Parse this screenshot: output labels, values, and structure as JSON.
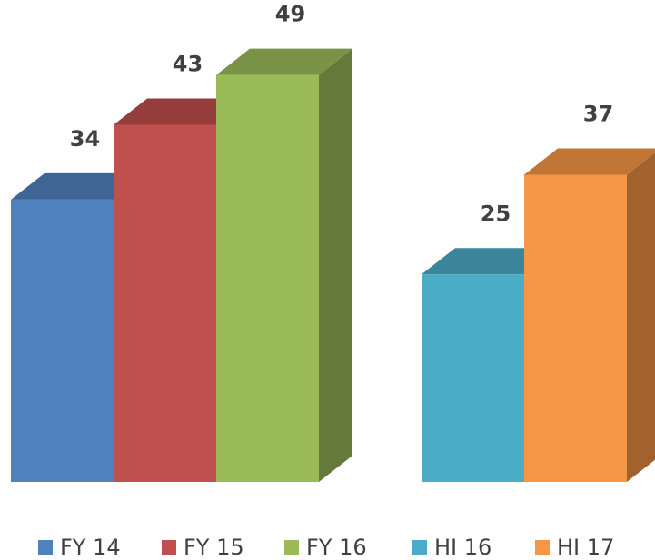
{
  "chart_data": {
    "type": "bar3d",
    "categories": [
      null,
      null
    ],
    "series": [
      {
        "name": "FY 14",
        "color": "#4f81bd",
        "values": [
          34,
          null
        ]
      },
      {
        "name": "FY 15",
        "color": "#c0504d",
        "values": [
          43,
          null
        ]
      },
      {
        "name": "FY 16",
        "color": "#9bbb59",
        "values": [
          49,
          null
        ]
      },
      {
        "name": "HI 16",
        "color": "#4bacc6",
        "values": [
          null,
          25
        ]
      },
      {
        "name": "HI 17",
        "color": "#f79646",
        "values": [
          null,
          37
        ]
      }
    ],
    "legend": "bottom"
  }
}
